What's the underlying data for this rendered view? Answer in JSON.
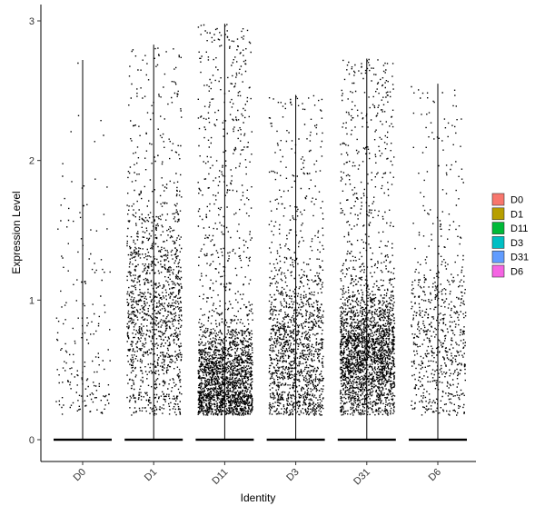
{
  "chart_data": {
    "type": "violin",
    "xlabel": "Identity",
    "ylabel": "Expression Level",
    "categories": [
      "D0",
      "D1",
      "D11",
      "D3",
      "D31",
      "D6"
    ],
    "ylim": [
      -0.15,
      3.05
    ],
    "yticks": [
      0,
      1,
      2,
      3
    ],
    "legend": {
      "placement": "right",
      "entries": [
        {
          "label": "D0",
          "color": "#F8766D"
        },
        {
          "label": "D1",
          "color": "#B79F00"
        },
        {
          "label": "D11",
          "color": "#00BA38"
        },
        {
          "label": "D3",
          "color": "#00BFC4"
        },
        {
          "label": "D31",
          "color": "#619CFF"
        },
        {
          "label": "D6",
          "color": "#F564E3"
        }
      ]
    },
    "series": [
      {
        "name": "D0",
        "max": 2.72,
        "n_points": 200,
        "center": 0.6,
        "spread": 0.8
      },
      {
        "name": "D1",
        "max": 2.83,
        "n_points": 1400,
        "center": 0.9,
        "spread": 0.7
      },
      {
        "name": "D11",
        "max": 2.98,
        "n_points": 2400,
        "center": 0.42,
        "spread": 0.35
      },
      {
        "name": "D3",
        "max": 2.47,
        "n_points": 1500,
        "center": 0.6,
        "spread": 0.55
      },
      {
        "name": "D31",
        "max": 2.73,
        "n_points": 2600,
        "center": 0.6,
        "spread": 0.4
      },
      {
        "name": "D6",
        "max": 2.55,
        "n_points": 700,
        "center": 0.7,
        "spread": 0.55
      }
    ]
  }
}
